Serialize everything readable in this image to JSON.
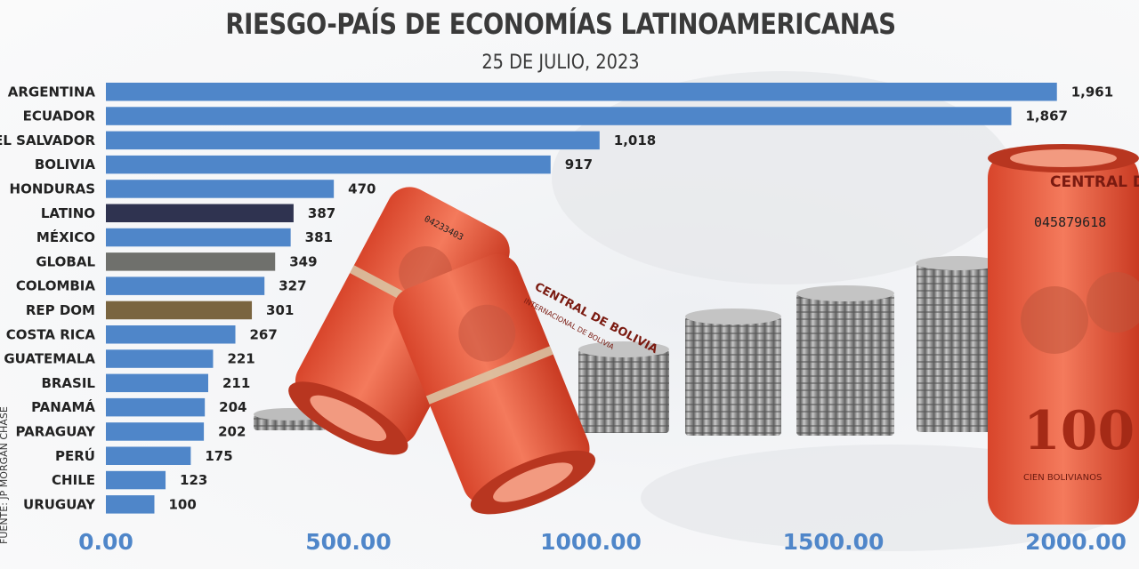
{
  "header": {
    "title": "RIESGO-PAÍS DE ECONOMÍAS LATINOAMERICANAS",
    "subtitle": "25 DE JULIO, 2023",
    "source": "FUENTE: JP MORGAN CHASE"
  },
  "illustration": {
    "banknote_left_label": "CENTRAL DE BOLIVIA",
    "banknote_left_sub": "INTERNACIONAL DE BOLIVIA",
    "banknote_left_serial": "04233403",
    "banknote_right_label": "CENTRAL DE BOLIVIA",
    "banknote_right_serial": "045879618",
    "banknote_right_denomination": "100",
    "banknote_right_caption": "CIEN BOLIVIANOS",
    "coins_color": "#9a9a9a",
    "banknote_color": "#e8563a"
  },
  "chart_data": {
    "type": "bar",
    "orientation": "horizontal",
    "title": "RIESGO-PAÍS DE ECONOMÍAS LATINOAMERICANAS",
    "subtitle": "25 DE JULIO, 2023",
    "categories": [
      "ARGENTINA",
      "ECUADOR",
      "EL SALVADOR",
      "BOLIVIA",
      "HONDURAS",
      "LATINO",
      "MÉXICO",
      "GLOBAL",
      "COLOMBIA",
      "REP DOM",
      "COSTA RICA",
      "GUATEMALA",
      "BRASIL",
      "PANAMÁ",
      "PARAGUAY",
      "PERÚ",
      "CHILE",
      "URUGUAY"
    ],
    "values": [
      1961,
      1867,
      1018,
      917,
      470,
      387,
      381,
      349,
      327,
      301,
      267,
      221,
      211,
      204,
      202,
      175,
      123,
      100
    ],
    "value_labels": [
      "1,961",
      "1,867",
      "1,018",
      "917",
      "470",
      "387",
      "381",
      "349",
      "327",
      "301",
      "267",
      "221",
      "211",
      "204",
      "202",
      "175",
      "123",
      "100"
    ],
    "colors": [
      "#4f86c9",
      "#4f86c9",
      "#4f86c9",
      "#4f86c9",
      "#4f86c9",
      "#2f3350",
      "#4f86c9",
      "#6f706c",
      "#4f86c9",
      "#7a6540",
      "#4f86c9",
      "#4f86c9",
      "#4f86c9",
      "#4f86c9",
      "#4f86c9",
      "#4f86c9",
      "#4f86c9",
      "#4f86c9"
    ],
    "xticks": [
      0,
      500,
      1000,
      1500,
      2000
    ],
    "xtick_labels": [
      "0.00",
      "500.00",
      "1000.00",
      "1500.00",
      "2000.00"
    ],
    "tick_color": "#4f86c9",
    "xlim": [
      0,
      2000
    ],
    "grid": false,
    "legend": false
  }
}
